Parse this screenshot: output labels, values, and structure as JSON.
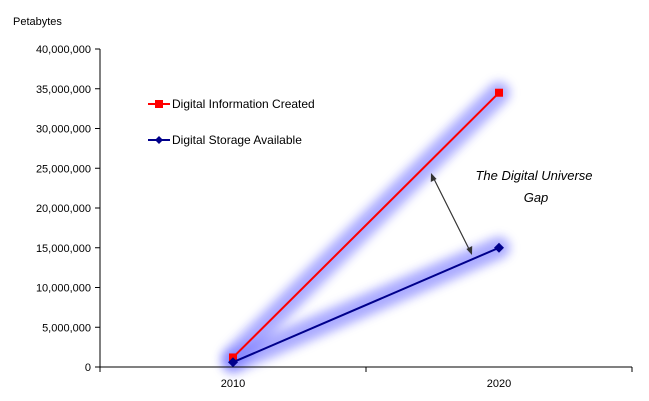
{
  "chart_data": {
    "type": "line",
    "title": "",
    "xlabel": "",
    "ylabel": "Petabytes",
    "categories": [
      "2010",
      "2020"
    ],
    "ylim": [
      0,
      40000000
    ],
    "yticks": [
      0,
      5000000,
      10000000,
      15000000,
      20000000,
      25000000,
      30000000,
      35000000,
      40000000
    ],
    "ytick_labels": [
      "0",
      "5,000,000",
      "10,000,000",
      "15,000,000",
      "20,000,000",
      "25,000,000",
      "30,000,000",
      "35,000,000",
      "40,000,000"
    ],
    "grid": false,
    "legend_position": "top-left",
    "series": [
      {
        "name": "Digital Information Created",
        "values": [
          1200000,
          34500000
        ],
        "color": "#ff0000",
        "marker": "square"
      },
      {
        "name": "Digital Storage Available",
        "values": [
          600000,
          15000000
        ],
        "color": "#00008b",
        "marker": "diamond"
      }
    ],
    "annotations": [
      {
        "lines": [
          "The Digital Universe",
          "Gap"
        ]
      }
    ],
    "glow_color": "#6666ff"
  }
}
